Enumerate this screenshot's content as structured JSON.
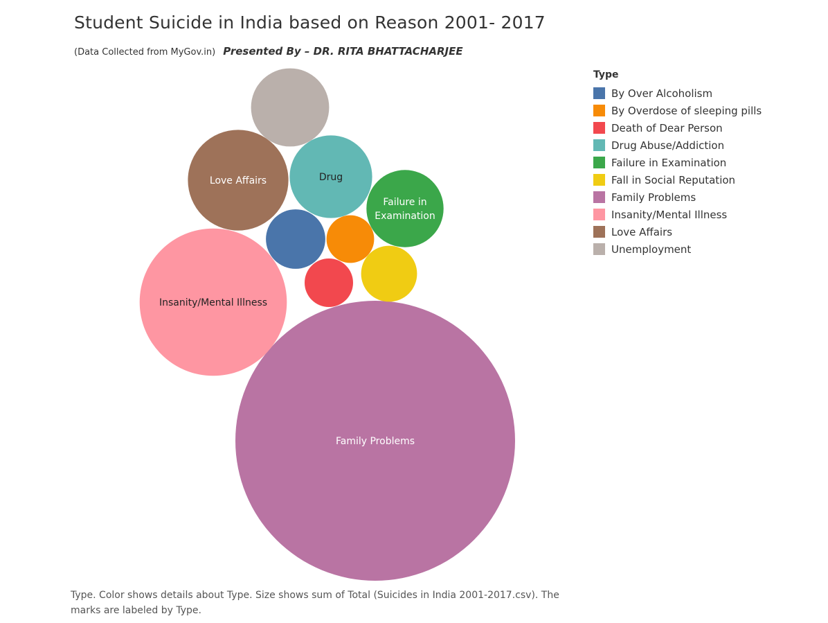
{
  "header": {
    "title": "Student Suicide in India based on Reason 2001- 2017",
    "source": "(Data Collected from MyGov.in)",
    "presenter": "Presented By – DR. RITA BHATTACHARJEE"
  },
  "legend": {
    "title": "Type",
    "items": [
      {
        "label": "By Over Alcoholism",
        "color": "#4a75aa"
      },
      {
        "label": "By Overdose of sleeping pills",
        "color": "#f78b07"
      },
      {
        "label": "Death of Dear Person",
        "color": "#f2484e"
      },
      {
        "label": "Drug Abuse/Addiction",
        "color": "#62b8b4"
      },
      {
        "label": "Failure in Examination",
        "color": "#3ba74a"
      },
      {
        "label": "Fall in Social Reputation",
        "color": "#f0cc13"
      },
      {
        "label": "Family Problems",
        "color": "#b974a3"
      },
      {
        "label": "Insanity/Mental Illness",
        "color": "#fe96a2"
      },
      {
        "label": "Love Affairs",
        "color": "#9e7259"
      },
      {
        "label": "Unemployment",
        "color": "#bab0ab"
      }
    ]
  },
  "caption": "Type.  Color shows details about Type.  Size shows sum of Total (Suicides in India 2001-2017.csv).  The marks are labeled by Type.",
  "chart_data": {
    "type": "bubble",
    "size_measure": "sum of Total",
    "values_relative": true,
    "series": [
      {
        "category": "Family Problems",
        "label": "Family Problems",
        "value": 1000,
        "color": "#b974a3",
        "label_color": "#ffffff"
      },
      {
        "category": "Insanity/Mental Illness",
        "label": "Insanity/Mental Illness",
        "value": 277,
        "color": "#fe96a2",
        "label_color": "#222222"
      },
      {
        "category": "Love Affairs",
        "label": "Love Affairs",
        "value": 129,
        "color": "#9e7259",
        "label_color": "#ffffff"
      },
      {
        "category": "Drug Abuse/Addiction",
        "label": "Drug",
        "value": 87,
        "color": "#62b8b4",
        "label_color": "#222222"
      },
      {
        "category": "Failure in Examination",
        "label": "Failure in\nExamination",
        "value": 76,
        "color": "#3ba74a",
        "label_color": "#ffffff"
      },
      {
        "category": "Unemployment",
        "label": "",
        "value": 78,
        "color": "#bab0ab",
        "label_color": "#222222"
      },
      {
        "category": "By Over Alcoholism",
        "label": "",
        "value": 45,
        "color": "#4a75aa",
        "label_color": "#ffffff"
      },
      {
        "category": "Fall in Social Reputation",
        "label": "",
        "value": 40,
        "color": "#f0cc13",
        "label_color": "#222222"
      },
      {
        "category": "By Overdose of sleeping pills",
        "label": "",
        "value": 29,
        "color": "#f78b07",
        "label_color": "#222222"
      },
      {
        "category": "Death of Dear Person",
        "label": "",
        "value": 30,
        "color": "#f2484e",
        "label_color": "#ffffff"
      }
    ]
  }
}
